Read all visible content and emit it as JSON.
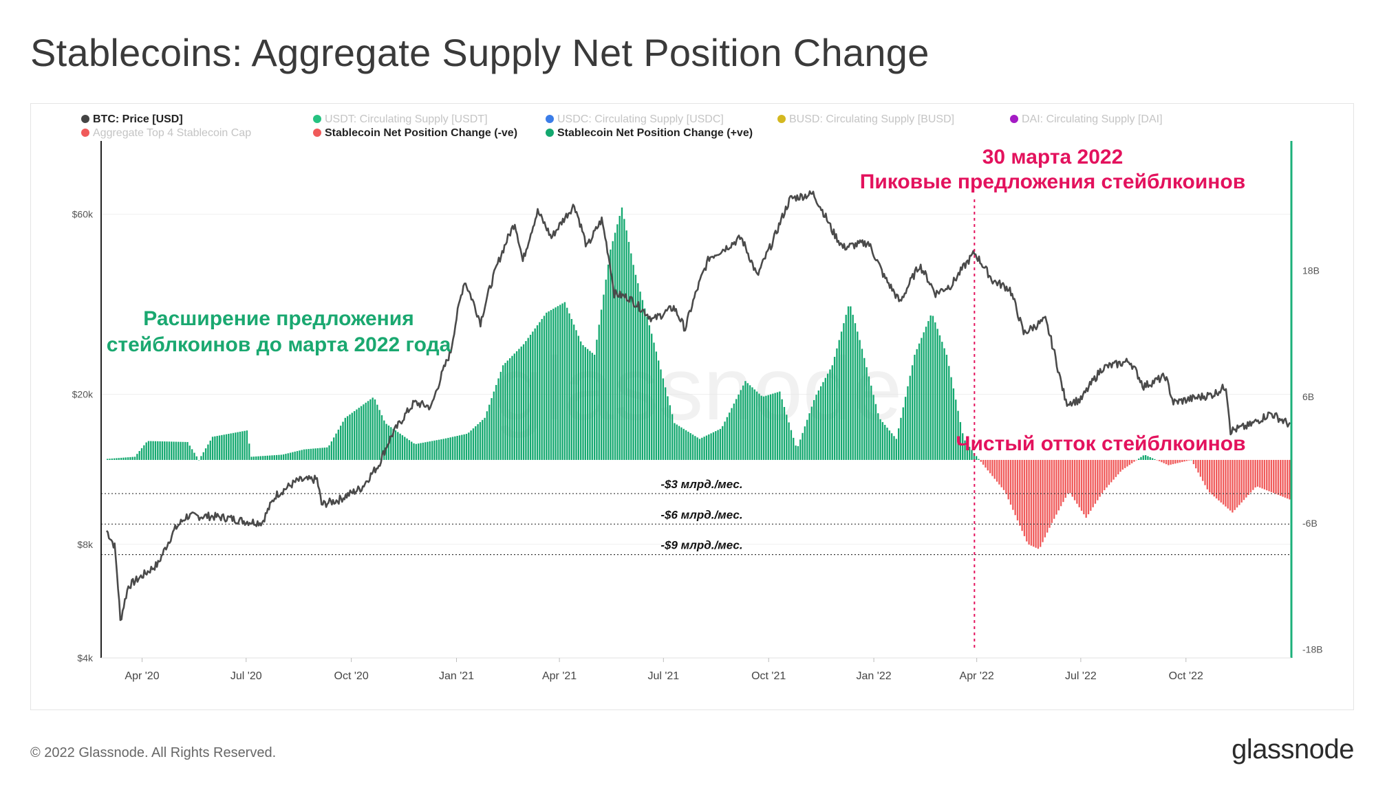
{
  "title": "Stablecoins: Aggregate Supply Net Position Change",
  "footer": {
    "copyright": "© 2022 Glassnode. All Rights Reserved.",
    "logo": "glassnode"
  },
  "watermark": "glassnode",
  "colors": {
    "btc": "#4a4a4a",
    "positive": "#13a86f",
    "negative": "#f05a5a",
    "usdt": "#26c281",
    "usdc": "#3b7de8",
    "busd": "#d4b820",
    "dai": "#a41bc4",
    "annotation": "#e3125d",
    "green_text": "#1aa870",
    "axis_right": "#1bb07a"
  },
  "legend": [
    {
      "label": "BTC: Price [USD]",
      "color": "#444444",
      "active": true
    },
    {
      "label": "USDT: Circulating Supply [USDT]",
      "color": "#26c281",
      "active": false
    },
    {
      "label": "USDC: Circulating Supply [USDC]",
      "color": "#3b7de8",
      "active": false
    },
    {
      "label": "BUSD: Circulating Supply [BUSD]",
      "color": "#d4b820",
      "active": false
    },
    {
      "label": "DAI: Circulating Supply [DAI]",
      "color": "#a41bc4",
      "active": false
    },
    {
      "label": "Aggregate Top 4 Stablecoin Cap",
      "color": "#f05a5a",
      "active": false
    },
    {
      "label": "Stablecoin Net Position Change (-ve)",
      "color": "#f05a5a",
      "active": true
    },
    {
      "label": "Stablecoin Net Position Change (+ve)",
      "color": "#13a86f",
      "active": true
    }
  ],
  "annotations": {
    "date_line1": "30 марта 2022",
    "date_line2": "Пиковые предложения стейблкоинов",
    "expansion_line1": "Расширение предложения",
    "expansion_line2": "стейблкоинов до марта 2022 года",
    "outflow": "Чистый отток стейблкоинов",
    "ref_lines": [
      "-$3 млрд./мес.",
      "-$6 млрд./мес.",
      "-$9 млрд./мес."
    ]
  },
  "chart_data": {
    "type": "line+bar",
    "title": "Stablecoins: Aggregate Supply Net Position Change",
    "x_ticks": [
      "Apr '20",
      "Jul '20",
      "Oct '20",
      "Jan '21",
      "Apr '21",
      "Jul '21",
      "Oct '21",
      "Jan '22",
      "Apr '22",
      "Jul '22",
      "Oct '22"
    ],
    "left_axis": {
      "scale": "log",
      "ticks": [
        "$4k",
        "$8k",
        "$20k",
        "$60k"
      ],
      "tick_values": [
        4000,
        8000,
        20000,
        60000
      ],
      "range": [
        4000,
        90000
      ]
    },
    "right_axis": {
      "scale": "linear",
      "ticks": [
        "18B",
        "6B",
        "-6B",
        "-18B"
      ],
      "tick_values": [
        18,
        6,
        -6,
        -18
      ],
      "range": [
        -18.5,
        30
      ]
    },
    "reference_lines_B": [
      -3.2,
      -6.1,
      -9.0
    ],
    "peak_date": "2022-03-30",
    "start_date": "2020-03-01",
    "end_date": "2022-12-31",
    "btc_price_usd": [
      [
        "2020-03-01",
        8700
      ],
      [
        "2020-03-08",
        7900
      ],
      [
        "2020-03-13",
        5000
      ],
      [
        "2020-03-20",
        6200
      ],
      [
        "2020-04-01",
        6600
      ],
      [
        "2020-04-15",
        7100
      ],
      [
        "2020-04-30",
        8800
      ],
      [
        "2020-05-10",
        9500
      ],
      [
        "2020-05-31",
        9500
      ],
      [
        "2020-06-15",
        9400
      ],
      [
        "2020-07-01",
        9200
      ],
      [
        "2020-07-15",
        9150
      ],
      [
        "2020-07-27",
        10800
      ],
      [
        "2020-08-15",
        11800
      ],
      [
        "2020-09-01",
        11900
      ],
      [
        "2020-09-05",
        10200
      ],
      [
        "2020-09-20",
        10500
      ],
      [
        "2020-10-10",
        11300
      ],
      [
        "2020-10-25",
        13000
      ],
      [
        "2020-11-05",
        15500
      ],
      [
        "2020-11-25",
        19000
      ],
      [
        "2020-12-10",
        18500
      ],
      [
        "2020-12-27",
        26000
      ],
      [
        "2021-01-08",
        40000
      ],
      [
        "2021-01-22",
        31000
      ],
      [
        "2021-02-08",
        46000
      ],
      [
        "2021-02-21",
        57000
      ],
      [
        "2021-02-28",
        45000
      ],
      [
        "2021-03-13",
        61000
      ],
      [
        "2021-03-25",
        52000
      ],
      [
        "2021-04-14",
        63500
      ],
      [
        "2021-04-25",
        49000
      ],
      [
        "2021-05-08",
        58000
      ],
      [
        "2021-05-19",
        37000
      ],
      [
        "2021-06-01",
        36000
      ],
      [
        "2021-06-22",
        31500
      ],
      [
        "2021-07-10",
        34000
      ],
      [
        "2021-07-20",
        29800
      ],
      [
        "2021-08-10",
        46000
      ],
      [
        "2021-08-25",
        49000
      ],
      [
        "2021-09-07",
        52000
      ],
      [
        "2021-09-21",
        41000
      ],
      [
        "2021-10-05",
        51000
      ],
      [
        "2021-10-20",
        66000
      ],
      [
        "2021-11-09",
        68000
      ],
      [
        "2021-11-26",
        54000
      ],
      [
        "2021-12-05",
        49000
      ],
      [
        "2021-12-27",
        50500
      ],
      [
        "2022-01-10",
        41000
      ],
      [
        "2022-01-24",
        35000
      ],
      [
        "2022-02-10",
        44000
      ],
      [
        "2022-02-24",
        37000
      ],
      [
        "2022-03-10",
        39000
      ],
      [
        "2022-03-30",
        47400
      ],
      [
        "2022-04-15",
        40000
      ],
      [
        "2022-04-30",
        38000
      ],
      [
        "2022-05-12",
        29000
      ],
      [
        "2022-05-31",
        31500
      ],
      [
        "2022-06-13",
        22000
      ],
      [
        "2022-06-18",
        19000
      ],
      [
        "2022-07-01",
        19300
      ],
      [
        "2022-07-20",
        23500
      ],
      [
        "2022-08-13",
        24500
      ],
      [
        "2022-08-25",
        21000
      ],
      [
        "2022-09-13",
        22300
      ],
      [
        "2022-09-20",
        19000
      ],
      [
        "2022-10-25",
        20000
      ],
      [
        "2022-11-05",
        21000
      ],
      [
        "2022-11-09",
        16000
      ],
      [
        "2022-11-25",
        16500
      ],
      [
        "2022-12-14",
        17800
      ],
      [
        "2022-12-31",
        16600
      ]
    ],
    "net_position_change_B": [
      [
        "2020-03-01",
        0.1
      ],
      [
        "2020-03-25",
        0.3
      ],
      [
        "2020-04-05",
        1.8
      ],
      [
        "2020-05-10",
        1.7
      ],
      [
        "2020-05-20",
        0.0
      ],
      [
        "2020-06-01",
        2.2
      ],
      [
        "2020-07-01",
        2.8
      ],
      [
        "2020-07-05",
        0.3
      ],
      [
        "2020-08-01",
        0.5
      ],
      [
        "2020-08-20",
        1.0
      ],
      [
        "2020-09-10",
        1.2
      ],
      [
        "2020-09-25",
        4.0
      ],
      [
        "2020-10-20",
        6.0
      ],
      [
        "2020-10-30",
        3.5
      ],
      [
        "2020-11-25",
        1.5
      ],
      [
        "2020-12-20",
        2.0
      ],
      [
        "2021-01-10",
        2.5
      ],
      [
        "2021-01-25",
        4.0
      ],
      [
        "2021-02-10",
        9.0
      ],
      [
        "2021-02-28",
        11.0
      ],
      [
        "2021-03-20",
        14.0
      ],
      [
        "2021-04-05",
        15.0
      ],
      [
        "2021-04-20",
        11.0
      ],
      [
        "2021-05-01",
        10.0
      ],
      [
        "2021-05-15",
        20.0
      ],
      [
        "2021-05-25",
        24.0
      ],
      [
        "2021-06-05",
        18.0
      ],
      [
        "2021-06-20",
        12.0
      ],
      [
        "2021-07-10",
        3.5
      ],
      [
        "2021-08-01",
        2.0
      ],
      [
        "2021-08-20",
        3.0
      ],
      [
        "2021-09-10",
        7.5
      ],
      [
        "2021-09-25",
        6.0
      ],
      [
        "2021-10-10",
        6.5
      ],
      [
        "2021-10-25",
        1.0
      ],
      [
        "2021-11-10",
        6.0
      ],
      [
        "2021-11-25",
        9.0
      ],
      [
        "2021-12-10",
        15.0
      ],
      [
        "2021-12-20",
        11.0
      ],
      [
        "2022-01-05",
        4.0
      ],
      [
        "2022-01-20",
        2.0
      ],
      [
        "2022-02-05",
        10.0
      ],
      [
        "2022-02-20",
        14.0
      ],
      [
        "2022-03-05",
        10.0
      ],
      [
        "2022-03-20",
        2.0
      ],
      [
        "2022-03-30",
        0.5
      ],
      [
        "2022-04-10",
        -1.0
      ],
      [
        "2022-04-25",
        -3.0
      ],
      [
        "2022-05-15",
        -8.0
      ],
      [
        "2022-05-25",
        -8.5
      ],
      [
        "2022-06-05",
        -6.0
      ],
      [
        "2022-06-20",
        -3.0
      ],
      [
        "2022-07-05",
        -5.5
      ],
      [
        "2022-07-20",
        -3.0
      ],
      [
        "2022-08-05",
        -1.0
      ],
      [
        "2022-08-25",
        0.5
      ],
      [
        "2022-09-15",
        -0.5
      ],
      [
        "2022-10-05",
        0.0
      ],
      [
        "2022-10-20",
        -3.0
      ],
      [
        "2022-11-10",
        -5.0
      ],
      [
        "2022-12-01",
        -2.5
      ],
      [
        "2022-12-31",
        -3.8
      ]
    ]
  }
}
